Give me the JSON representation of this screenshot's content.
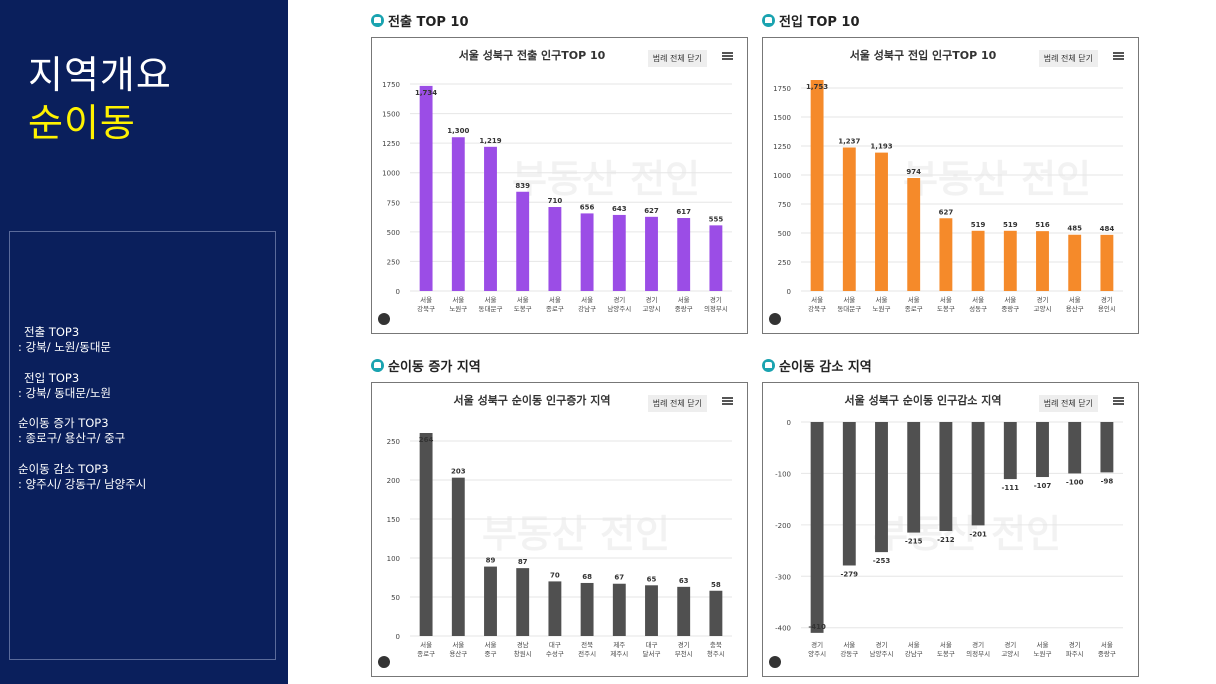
{
  "sidebar": {
    "title1": "지역개요",
    "title2": "순이동",
    "info": [
      {
        "label": "전출 TOP3",
        "value": ": 강북/ 노원/동대문"
      },
      {
        "label": "전입 TOP3",
        "value": ": 강북/ 동대문/노원"
      },
      {
        "label": "순이동 증가 TOP3",
        "value": ": 종로구/ 용산구/ 중구"
      },
      {
        "label": "순이동 감소 TOP3",
        "value": ": 양주시/ 강동구/ 남양주시"
      }
    ]
  },
  "sections": [
    {
      "heading": "전출 TOP 10"
    },
    {
      "heading": "전입 TOP 10"
    },
    {
      "heading": "순이동 증가 지역"
    },
    {
      "heading": "순이동 감소 지역"
    }
  ],
  "ui": {
    "legend_button": "범례 전체 닫기",
    "watermark": "부동산 전인"
  },
  "chart_data": [
    {
      "type": "bar",
      "title": "서울 성북구 전출 인구TOP 10",
      "color": "#9b4de6",
      "ylim": [
        0,
        1750
      ],
      "yticks": [
        0,
        250,
        500,
        750,
        1000,
        1250,
        1500,
        1750
      ],
      "categories": [
        [
          "서울",
          "강북구"
        ],
        [
          "서울",
          "노원구"
        ],
        [
          "서울",
          "동대문구"
        ],
        [
          "서울",
          "도봉구"
        ],
        [
          "서울",
          "종로구"
        ],
        [
          "서울",
          "강남구"
        ],
        [
          "경기",
          "남양주시"
        ],
        [
          "경기",
          "고양시"
        ],
        [
          "서울",
          "중랑구"
        ],
        [
          "경기",
          "의정부시"
        ]
      ],
      "values": [
        1734,
        1300,
        1219,
        839,
        710,
        656,
        643,
        627,
        617,
        555
      ],
      "labels": [
        "1,734",
        "1,300",
        "1,219",
        "839",
        "710",
        "656",
        "643",
        "627",
        "617",
        "555"
      ]
    },
    {
      "type": "bar",
      "title": "서울 성북구 전입 인구TOP 10",
      "color": "#f58a2a",
      "ylim": [
        0,
        1750
      ],
      "yticks": [
        0,
        250,
        500,
        750,
        1000,
        1250,
        1500,
        1750
      ],
      "categories": [
        [
          "서울",
          "강북구"
        ],
        [
          "서울",
          "동대문구"
        ],
        [
          "서울",
          "노원구"
        ],
        [
          "서울",
          "종로구"
        ],
        [
          "서울",
          "도봉구"
        ],
        [
          "서울",
          "성동구"
        ],
        [
          "서울",
          "중랑구"
        ],
        [
          "경기",
          "고양시"
        ],
        [
          "서울",
          "용산구"
        ],
        [
          "경기",
          "용인시"
        ]
      ],
      "values": [
        1753,
        1237,
        1193,
        974,
        627,
        519,
        519,
        516,
        485,
        484
      ],
      "labels": [
        "1,753",
        "1,237",
        "1,193",
        "974",
        "627",
        "519",
        "519",
        "516",
        "485",
        "484"
      ]
    },
    {
      "type": "bar",
      "title": "서울 성북구 순이동 인구증가 지역",
      "color": "#505050",
      "ylim": [
        0,
        250
      ],
      "yticks": [
        0,
        50,
        100,
        150,
        200,
        250
      ],
      "categories": [
        [
          "서울",
          "종로구"
        ],
        [
          "서울",
          "용산구"
        ],
        [
          "서울",
          "중구"
        ],
        [
          "경남",
          "창원시"
        ],
        [
          "대구",
          "수성구"
        ],
        [
          "전북",
          "전주시"
        ],
        [
          "제주",
          "제주시"
        ],
        [
          "대구",
          "달서구"
        ],
        [
          "경기",
          "부천시"
        ],
        [
          "충북",
          "청주시"
        ]
      ],
      "values": [
        264,
        203,
        89,
        87,
        70,
        68,
        67,
        65,
        63,
        58
      ],
      "labels": [
        "264",
        "203",
        "89",
        "87",
        "70",
        "68",
        "67",
        "65",
        "63",
        "58"
      ]
    },
    {
      "type": "bar",
      "title": "서울 성북구 순이동 인구감소 지역",
      "color": "#505050",
      "ylim": [
        -400,
        0
      ],
      "yticks": [
        0,
        -100,
        -200,
        -300,
        -400
      ],
      "categories": [
        [
          "경기",
          "양주시"
        ],
        [
          "서울",
          "강동구"
        ],
        [
          "경기",
          "남양주시"
        ],
        [
          "서울",
          "강남구"
        ],
        [
          "서울",
          "도봉구"
        ],
        [
          "경기",
          "의정부시"
        ],
        [
          "경기",
          "고양시"
        ],
        [
          "서울",
          "노원구"
        ],
        [
          "경기",
          "파주시"
        ],
        [
          "서울",
          "중랑구"
        ]
      ],
      "values": [
        -410,
        -279,
        -253,
        -215,
        -212,
        -201,
        -111,
        -107,
        -100,
        -98
      ],
      "labels": [
        "-410",
        "-279",
        "-253",
        "-215",
        "-212",
        "-201",
        "-111",
        "-107",
        "-100",
        "-98"
      ]
    }
  ]
}
